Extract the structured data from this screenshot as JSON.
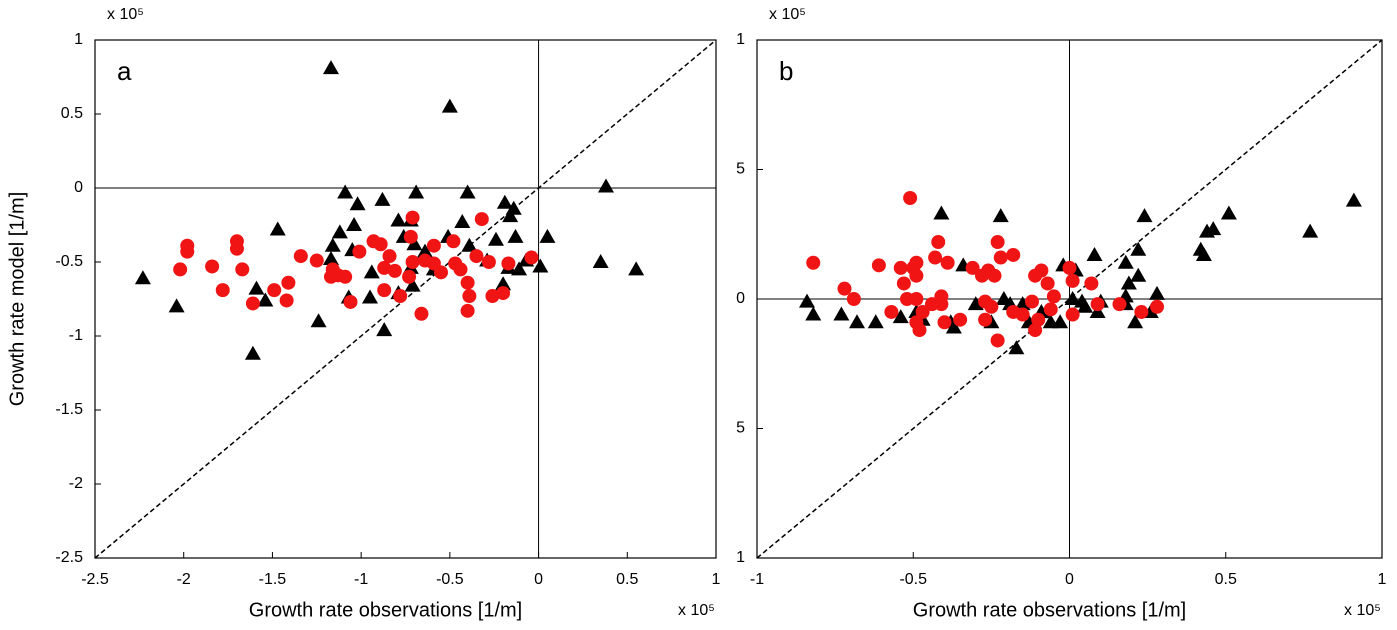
{
  "chart_data": [
    {
      "type": "scatter",
      "panel_label": "a",
      "xlabel": "Growth rate observations [1/m]",
      "ylabel": "Growth rate model [1/m]",
      "x_multiplier": "x 10⁵",
      "y_multiplier": "x 10⁵",
      "xlim": [
        -2.5,
        1
      ],
      "ylim": [
        -2.5,
        1
      ],
      "xticks": [
        -2.5,
        -2,
        -1.5,
        -1,
        -0.5,
        0,
        0.5,
        1
      ],
      "yticks": [
        1,
        0.5,
        0,
        -0.5,
        -1,
        -1.5,
        -2,
        -2.5
      ],
      "zero_lines": true,
      "diagonal": true,
      "series": [
        {
          "color": "#000000",
          "marker": "triangle",
          "x": [
            -2.23,
            -2.04,
            -1.17,
            -0.5,
            -1.47,
            -1.59,
            -1.54,
            -1.61,
            -1.24,
            -1.09,
            -1.02,
            -1.12,
            -1.16,
            -1.17,
            -1.05,
            -1.04,
            -1.07,
            -0.95,
            -0.88,
            -0.87,
            -0.94,
            -0.79,
            -0.76,
            -0.69,
            -0.72,
            -0.7,
            -0.72,
            -0.79,
            -0.71,
            -0.64,
            -0.59,
            -0.51,
            -0.43,
            -0.4,
            -0.39,
            -0.29,
            -0.24,
            -0.19,
            -0.16,
            -0.14,
            -0.13,
            -0.17,
            -0.11,
            -0.2,
            -0.07,
            0.01,
            0.05,
            0.35,
            0.38,
            0.55
          ],
          "values": [
            -0.61,
            -0.8,
            0.81,
            0.55,
            -0.28,
            -0.68,
            -0.76,
            -1.12,
            -0.9,
            -0.03,
            -0.11,
            -0.3,
            -0.39,
            -0.48,
            -0.42,
            -0.25,
            -0.74,
            -0.74,
            -0.08,
            -0.96,
            -0.57,
            -0.22,
            -0.33,
            -0.03,
            -0.22,
            -0.38,
            -0.54,
            -0.71,
            -0.66,
            -0.43,
            -0.55,
            -0.33,
            -0.23,
            -0.03,
            -0.39,
            -0.49,
            -0.35,
            -0.1,
            -0.19,
            -0.14,
            -0.33,
            -0.54,
            -0.55,
            -0.65,
            -0.49,
            -0.53,
            -0.33,
            -0.5,
            0.01,
            -0.55
          ]
        },
        {
          "color": "#f01414",
          "marker": "circle",
          "x": [
            -2.02,
            -1.98,
            -1.98,
            -1.84,
            -1.78,
            -1.7,
            -1.7,
            -1.67,
            -1.61,
            -1.49,
            -1.42,
            -1.41,
            -1.34,
            -1.25,
            -1.16,
            -1.13,
            -1.09,
            -1.06,
            -1.17,
            -1.01,
            -0.93,
            -0.89,
            -0.87,
            -0.84,
            -0.81,
            -0.87,
            -0.78,
            -0.73,
            -0.71,
            -0.72,
            -0.71,
            -0.64,
            -0.59,
            -0.66,
            -0.55,
            -0.47,
            -0.44,
            -0.4,
            -0.39,
            -0.4,
            -0.35,
            -0.28,
            -0.32,
            -0.26,
            -0.2,
            -0.17,
            -0.04,
            -0.59,
            -0.48
          ],
          "values": [
            -0.55,
            -0.39,
            -0.43,
            -0.53,
            -0.69,
            -0.36,
            -0.41,
            -0.55,
            -0.78,
            -0.69,
            -0.76,
            -0.64,
            -0.46,
            -0.49,
            -0.55,
            -0.59,
            -0.6,
            -0.77,
            -0.6,
            -0.43,
            -0.36,
            -0.38,
            -0.54,
            -0.46,
            -0.56,
            -0.69,
            -0.73,
            -0.6,
            -0.5,
            -0.33,
            -0.2,
            -0.49,
            -0.51,
            -0.85,
            -0.57,
            -0.51,
            -0.55,
            -0.64,
            -0.73,
            -0.83,
            -0.46,
            -0.5,
            -0.21,
            -0.73,
            -0.71,
            -0.51,
            -0.47,
            -0.39,
            -0.36
          ]
        }
      ]
    },
    {
      "type": "scatter",
      "panel_label": "b",
      "xlabel": "Growth rate observations [1/m]",
      "x_multiplier": "x 10⁵",
      "y_multiplier": "x 10⁵",
      "xlim": [
        -1,
        1
      ],
      "ylim": [
        -1,
        1
      ],
      "xticks": [
        -1,
        -0.5,
        0,
        0.5,
        1
      ],
      "yticks": [
        1,
        {
          "value": 0.5,
          "label": "5"
        },
        0,
        {
          "value": -0.5,
          "label": "5"
        },
        {
          "value": -1,
          "label": "1"
        }
      ],
      "zero_lines": true,
      "diagonal": true,
      "series": [
        {
          "color": "#000000",
          "marker": "triangle",
          "x": [
            -0.84,
            -0.82,
            -0.73,
            -0.68,
            -0.62,
            -0.54,
            -0.49,
            -0.47,
            -0.41,
            -0.38,
            -0.37,
            -0.34,
            -0.3,
            -0.25,
            -0.22,
            -0.21,
            -0.19,
            -0.17,
            -0.15,
            -0.13,
            -0.09,
            -0.06,
            -0.03,
            -0.02,
            0.01,
            0.02,
            0.04,
            0.05,
            0.08,
            0.1,
            0.09,
            0.18,
            0.18,
            0.18,
            0.19,
            0.22,
            0.22,
            0.21,
            0.24,
            0.26,
            0.28,
            0.42,
            0.43,
            0.44,
            0.46,
            0.51,
            0.77,
            0.91
          ],
          "values": [
            -0.01,
            -0.06,
            -0.06,
            -0.09,
            -0.09,
            -0.07,
            -0.05,
            -0.08,
            0.33,
            -0.09,
            -0.11,
            0.13,
            -0.02,
            -0.09,
            0.32,
            0,
            -0.02,
            -0.19,
            -0.02,
            -0.09,
            -0.05,
            -0.09,
            -0.09,
            0.13,
            0,
            0.11,
            -0.01,
            -0.03,
            0.17,
            -0.01,
            -0.05,
            0.14,
            0.01,
            -0.02,
            0.06,
            0.09,
            0.19,
            -0.09,
            0.32,
            -0.05,
            0.02,
            0.19,
            0.17,
            0.26,
            0.27,
            0.33,
            0.26,
            0.38
          ]
        },
        {
          "color": "#f01414",
          "marker": "circle",
          "x": [
            -0.82,
            -0.72,
            -0.69,
            -0.61,
            -0.57,
            -0.54,
            -0.53,
            -0.52,
            -0.51,
            -0.5,
            -0.49,
            -0.49,
            -0.49,
            -0.49,
            -0.48,
            -0.47,
            -0.44,
            -0.43,
            -0.42,
            -0.41,
            -0.4,
            -0.41,
            -0.39,
            -0.35,
            -0.31,
            -0.28,
            -0.26,
            -0.27,
            -0.27,
            -0.25,
            -0.24,
            -0.23,
            -0.22,
            -0.23,
            -0.18,
            -0.18,
            -0.15,
            -0.12,
            -0.11,
            -0.1,
            -0.09,
            -0.11,
            -0.07,
            -0.06,
            -0.05,
            0,
            0.01,
            0.01,
            0.07,
            0.09,
            0.16,
            0.23,
            0.28
          ],
          "values": [
            0.14,
            0.04,
            0,
            0.13,
            -0.05,
            0.12,
            0.06,
            0,
            0.39,
            0.12,
            0.09,
            0.14,
            0,
            -0.09,
            -0.12,
            -0.05,
            -0.02,
            0.16,
            0.22,
            -0.02,
            -0.09,
            0.01,
            0.14,
            -0.08,
            0.12,
            0.09,
            0.11,
            -0.01,
            -0.08,
            -0.03,
            0.09,
            0.22,
            0.16,
            -0.16,
            0.17,
            -0.05,
            -0.06,
            -0.01,
            0.09,
            -0.08,
            0.11,
            -0.12,
            0.06,
            -0.04,
            0.01,
            0.12,
            -0.06,
            0.07,
            0.06,
            -0.02,
            -0.02,
            -0.05,
            -0.03
          ]
        }
      ]
    }
  ]
}
